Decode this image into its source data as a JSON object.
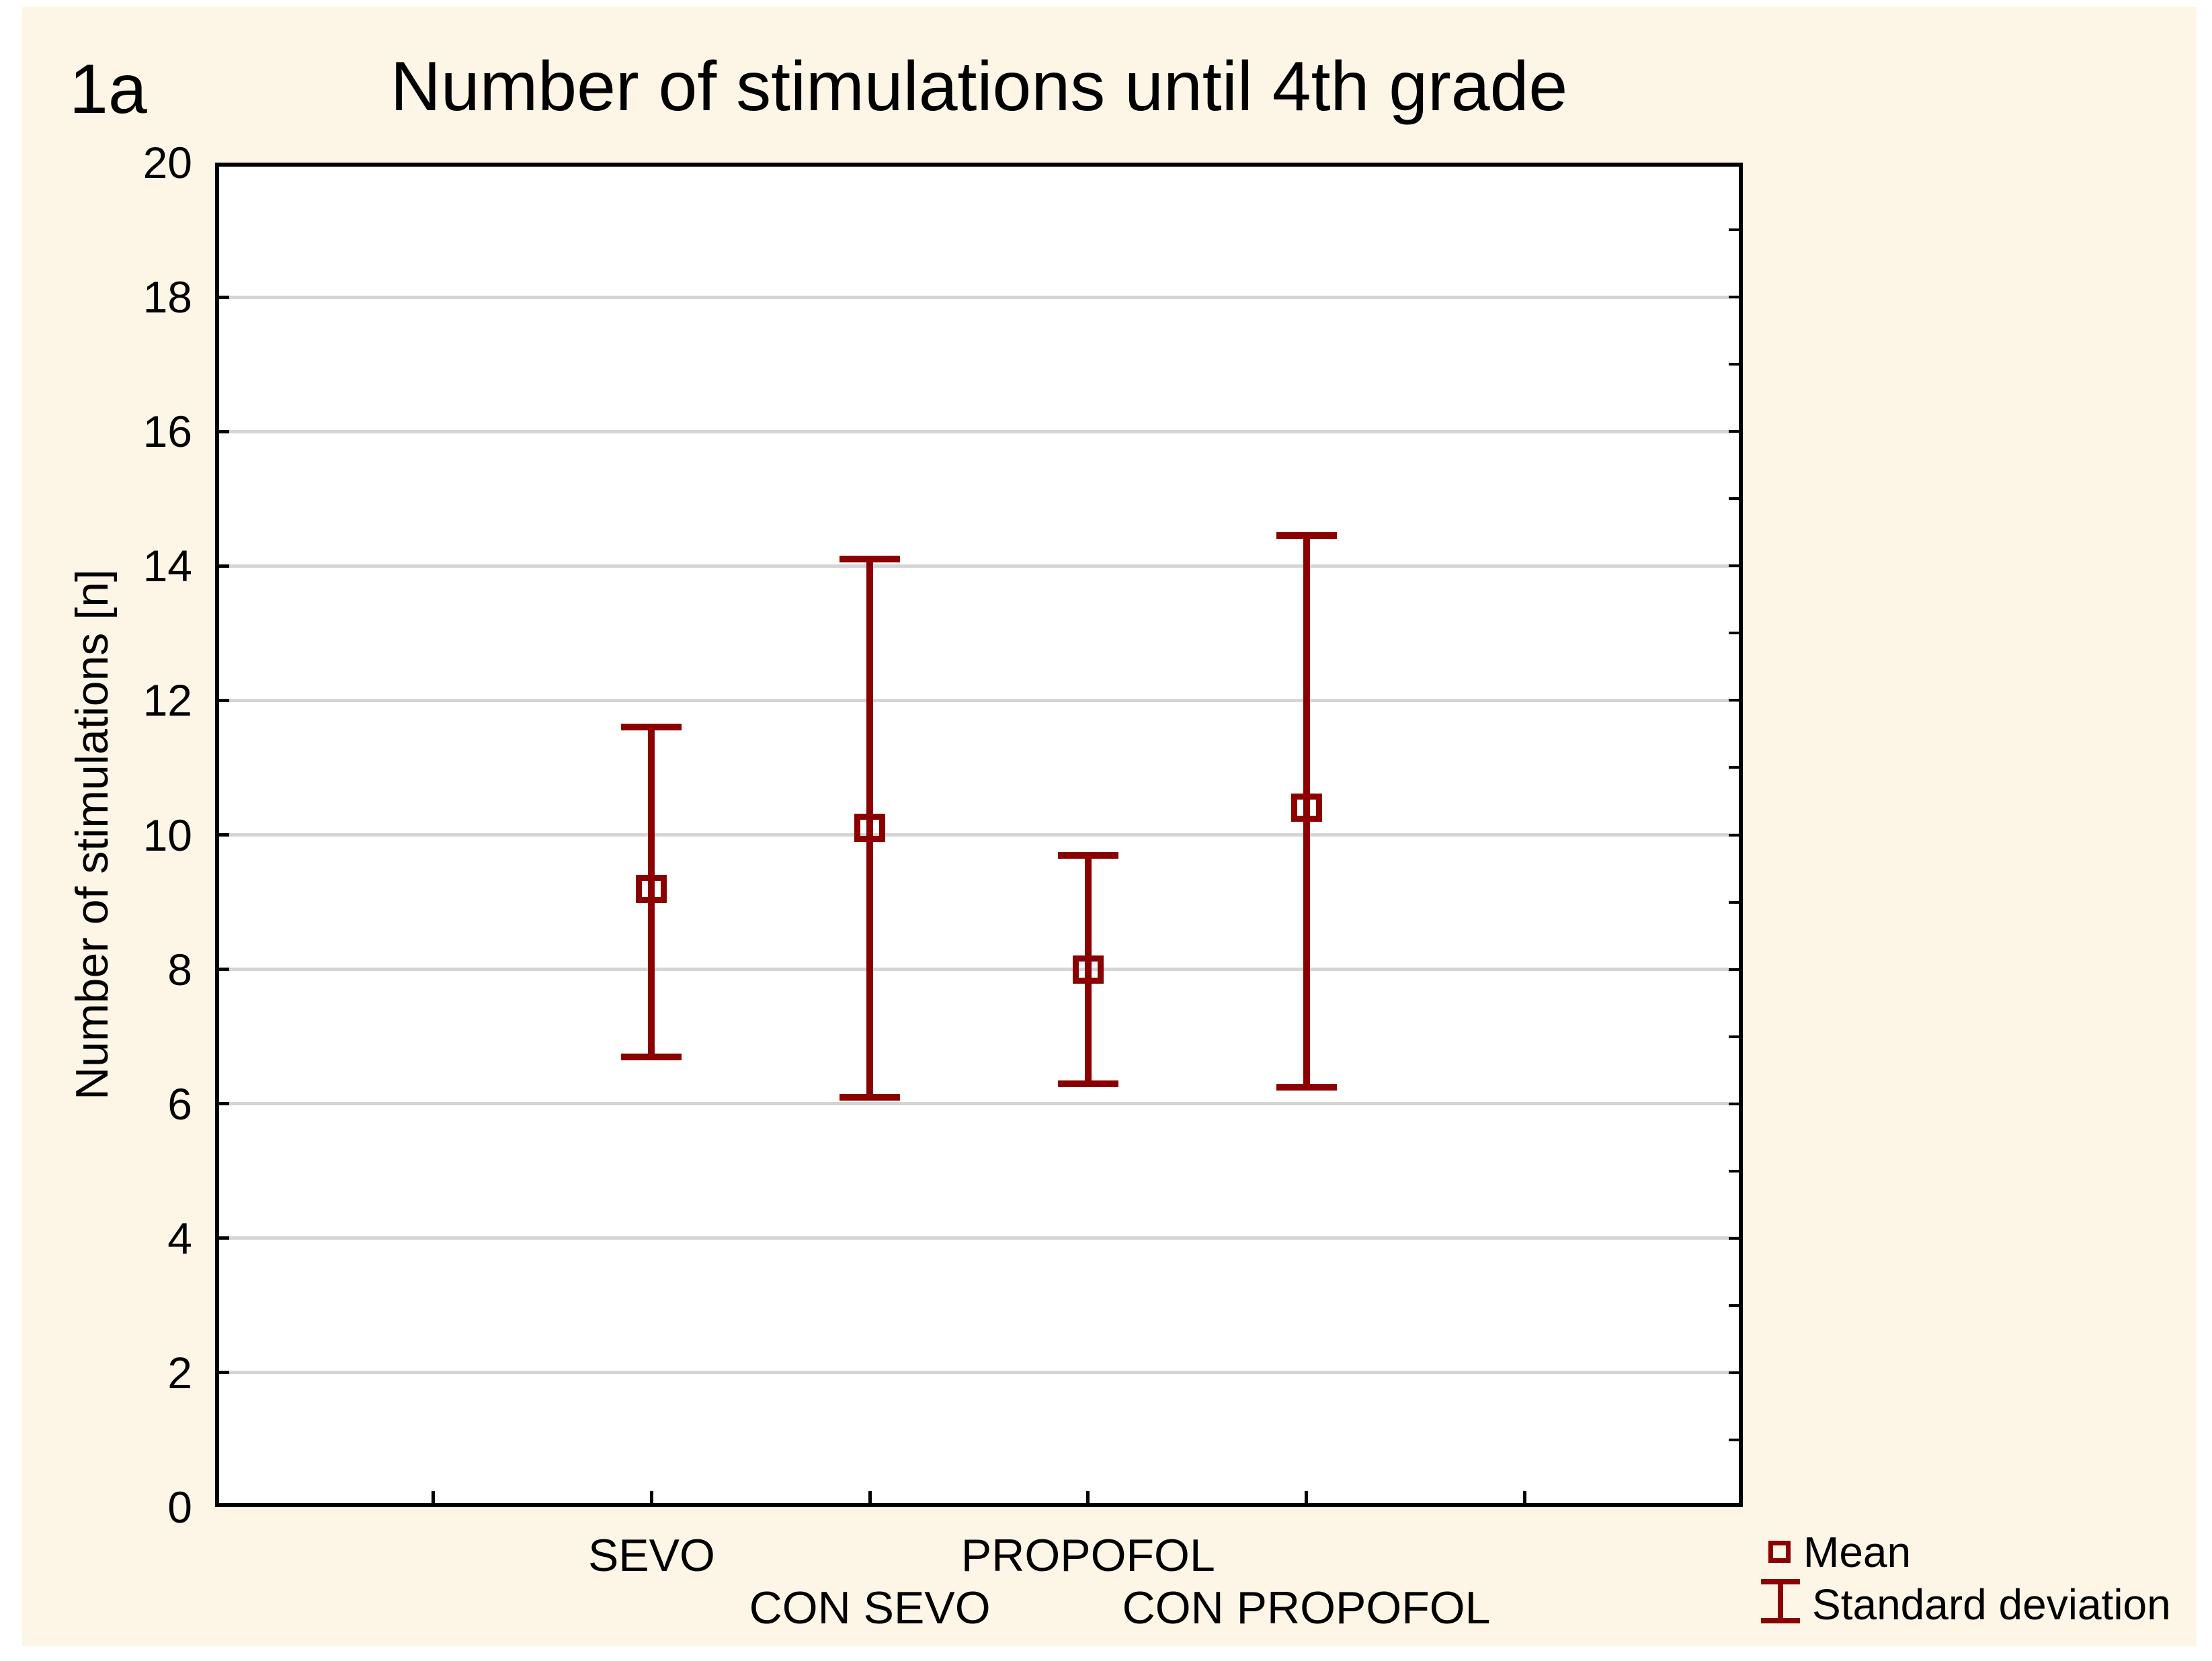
{
  "figure_label": "1a",
  "title": "Number of stimulations until 4th grade",
  "y_axis": {
    "title": "Number of stimulations [n]",
    "ticks": [
      0,
      2,
      4,
      6,
      8,
      10,
      12,
      14,
      16,
      18,
      20
    ]
  },
  "x_axis": {
    "categories": [
      {
        "label": "SEVO",
        "row": 0
      },
      {
        "label": "CON SEVO",
        "row": 1
      },
      {
        "label": "PROPOFOL",
        "row": 0
      },
      {
        "label": "CON PROPOFOL",
        "row": 1
      }
    ]
  },
  "legend": {
    "items": [
      {
        "symbol": "square",
        "label": "Mean"
      },
      {
        "symbol": "error-bar",
        "label": "Standard deviation"
      }
    ]
  },
  "colors": {
    "series": "#8B0000",
    "figure_background": "#FDF5E6",
    "plot_background": "#FFFFFF",
    "grid": "#D5D5D5",
    "axis": "#000000",
    "text": "#000000"
  },
  "chart_data": {
    "type": "error-bar",
    "title": "Number of stimulations until 4th grade",
    "ylabel": "Number of stimulations [n]",
    "ylim": [
      0,
      20
    ],
    "grid": "horizontal gridlines every 2 units",
    "legend_position": "bottom-right",
    "categories": [
      "SEVO",
      "CON SEVO",
      "PROPOFOL",
      "CON PROPOFOL"
    ],
    "series": [
      {
        "name": "Mean",
        "values": [
          9.2,
          10.1,
          8.0,
          10.4
        ]
      },
      {
        "name": "Mean + SD",
        "values": [
          11.6,
          14.1,
          9.7,
          14.45
        ]
      },
      {
        "name": "Mean - SD",
        "values": [
          6.7,
          6.1,
          6.3,
          6.25
        ]
      }
    ]
  }
}
